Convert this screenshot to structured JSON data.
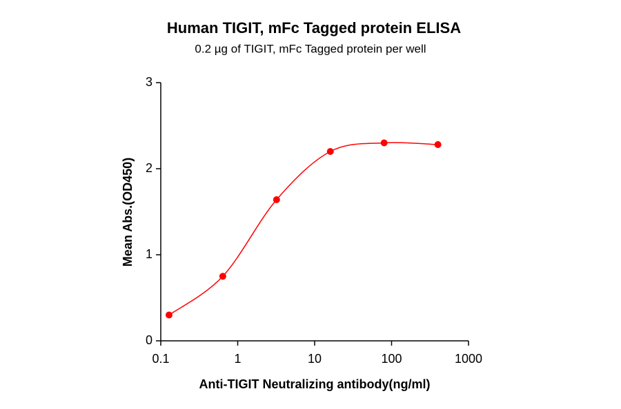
{
  "chart_data": {
    "type": "scatter",
    "title": "Human TIGIT, mFc Tagged protein ELISA",
    "subtitle": "0.2 µg of TIGIT, mFc Tagged protein per well",
    "x_label": "Anti-TIGIT Neutralizing antibody(ng/ml)",
    "y_label": "Mean Abs.(OD450)",
    "x": [
      0.128,
      0.64,
      3.2,
      16,
      80,
      400
    ],
    "values": [
      0.3,
      0.75,
      1.64,
      2.2,
      2.3,
      2.28
    ],
    "color": "#ff0000",
    "x_log": true,
    "xlim": [
      0.1,
      1000
    ],
    "xticks": [
      0.1,
      1,
      10,
      100,
      1000
    ],
    "ylim": [
      0,
      3
    ],
    "yticks": [
      0,
      1,
      2,
      3
    ],
    "fit_line": true
  }
}
